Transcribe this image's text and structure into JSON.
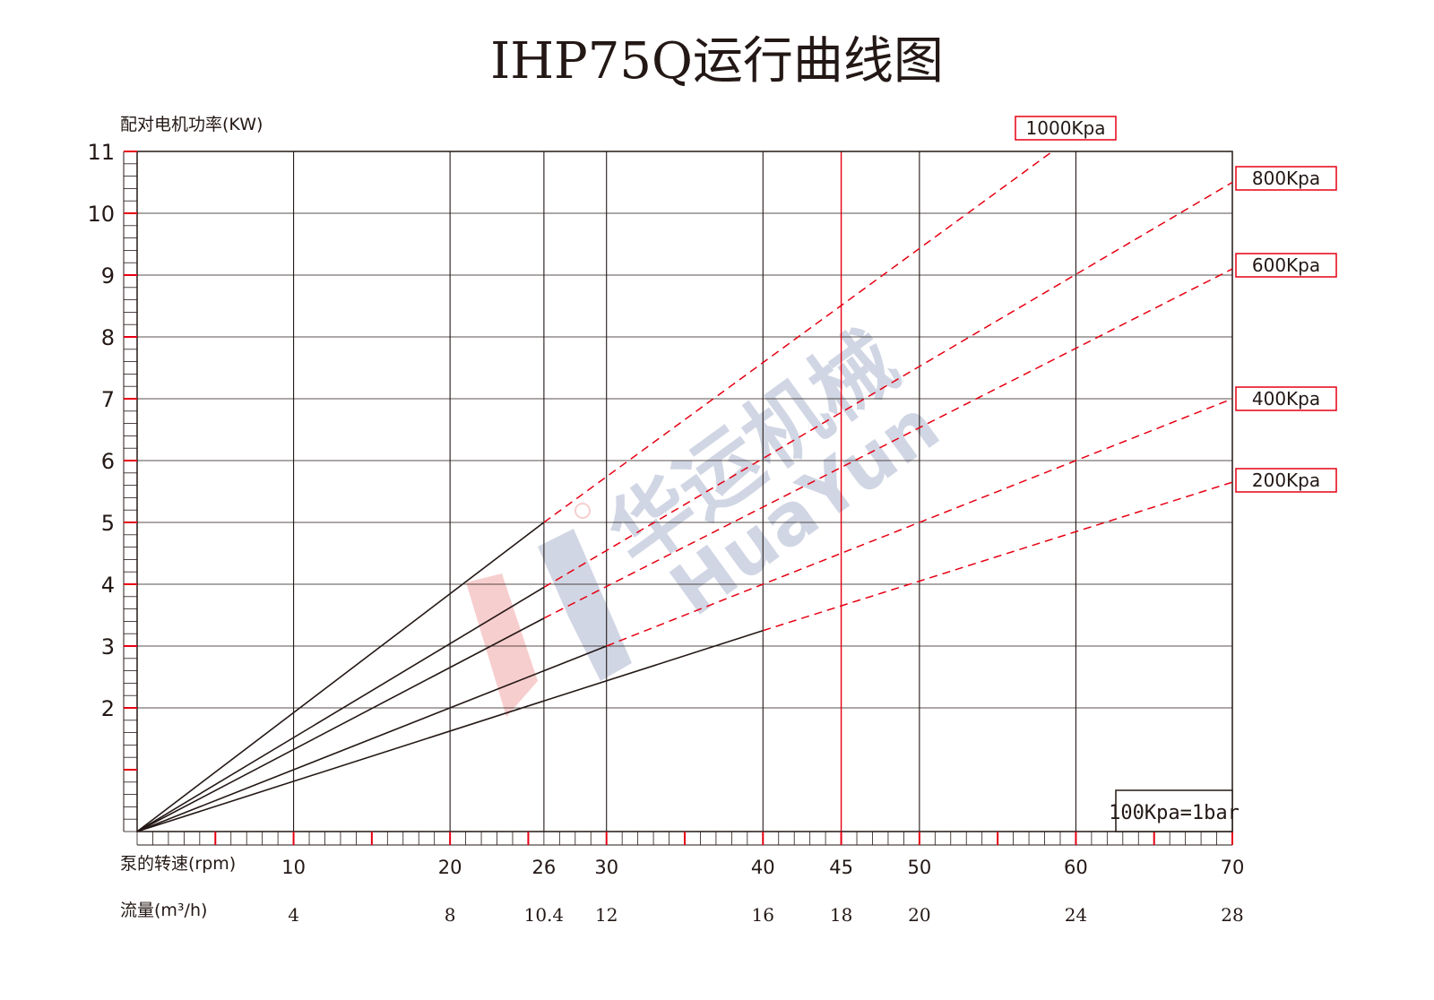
{
  "title": "IHP75Q运行曲线图",
  "colors": {
    "ink": "#231815",
    "accent": "#e60012",
    "grid": "#231815",
    "watermark_red": "#f6c6c6",
    "watermark_blue": "#c9cfe0"
  },
  "watermark": {
    "brand_cn": "华运机械",
    "brand_en": "HuaYun"
  },
  "chart_data": {
    "type": "line",
    "title": "IHP75Q运行曲线图",
    "ylabel": "配对电机功率(KW)",
    "xlabel": "泵的转速(rpm)",
    "x2label": "流量(m³/h)",
    "ylim": [
      0,
      11
    ],
    "xlim": [
      0,
      70
    ],
    "y_ticks": [
      2,
      3,
      4,
      5,
      6,
      7,
      8,
      9,
      10,
      11
    ],
    "x_ticks": [
      10,
      20,
      26,
      30,
      40,
      45,
      50,
      60,
      70
    ],
    "flow_ticks": [
      "4",
      "8",
      "10.4",
      "12",
      "16",
      "18",
      "20",
      "24",
      "28"
    ],
    "highlight_x": 45,
    "note": "100Kpa=1bar",
    "series": [
      {
        "name": "1000Kpa",
        "x": [
          0,
          26,
          58.5
        ],
        "y": [
          0,
          5.0,
          11
        ],
        "solid_until": 26
      },
      {
        "name": "800Kpa",
        "x": [
          0,
          26,
          70
        ],
        "y": [
          0,
          3.95,
          10.5
        ],
        "solid_until": 26
      },
      {
        "name": "600Kpa",
        "x": [
          0,
          26,
          70
        ],
        "y": [
          0,
          3.45,
          9.1
        ],
        "solid_until": 26
      },
      {
        "name": "400Kpa",
        "x": [
          0,
          30,
          70
        ],
        "y": [
          0,
          3.0,
          7.0
        ],
        "solid_until": 30
      },
      {
        "name": "200Kpa",
        "x": [
          0,
          40,
          70
        ],
        "y": [
          0,
          3.25,
          5.65
        ],
        "solid_until": 40
      }
    ]
  }
}
